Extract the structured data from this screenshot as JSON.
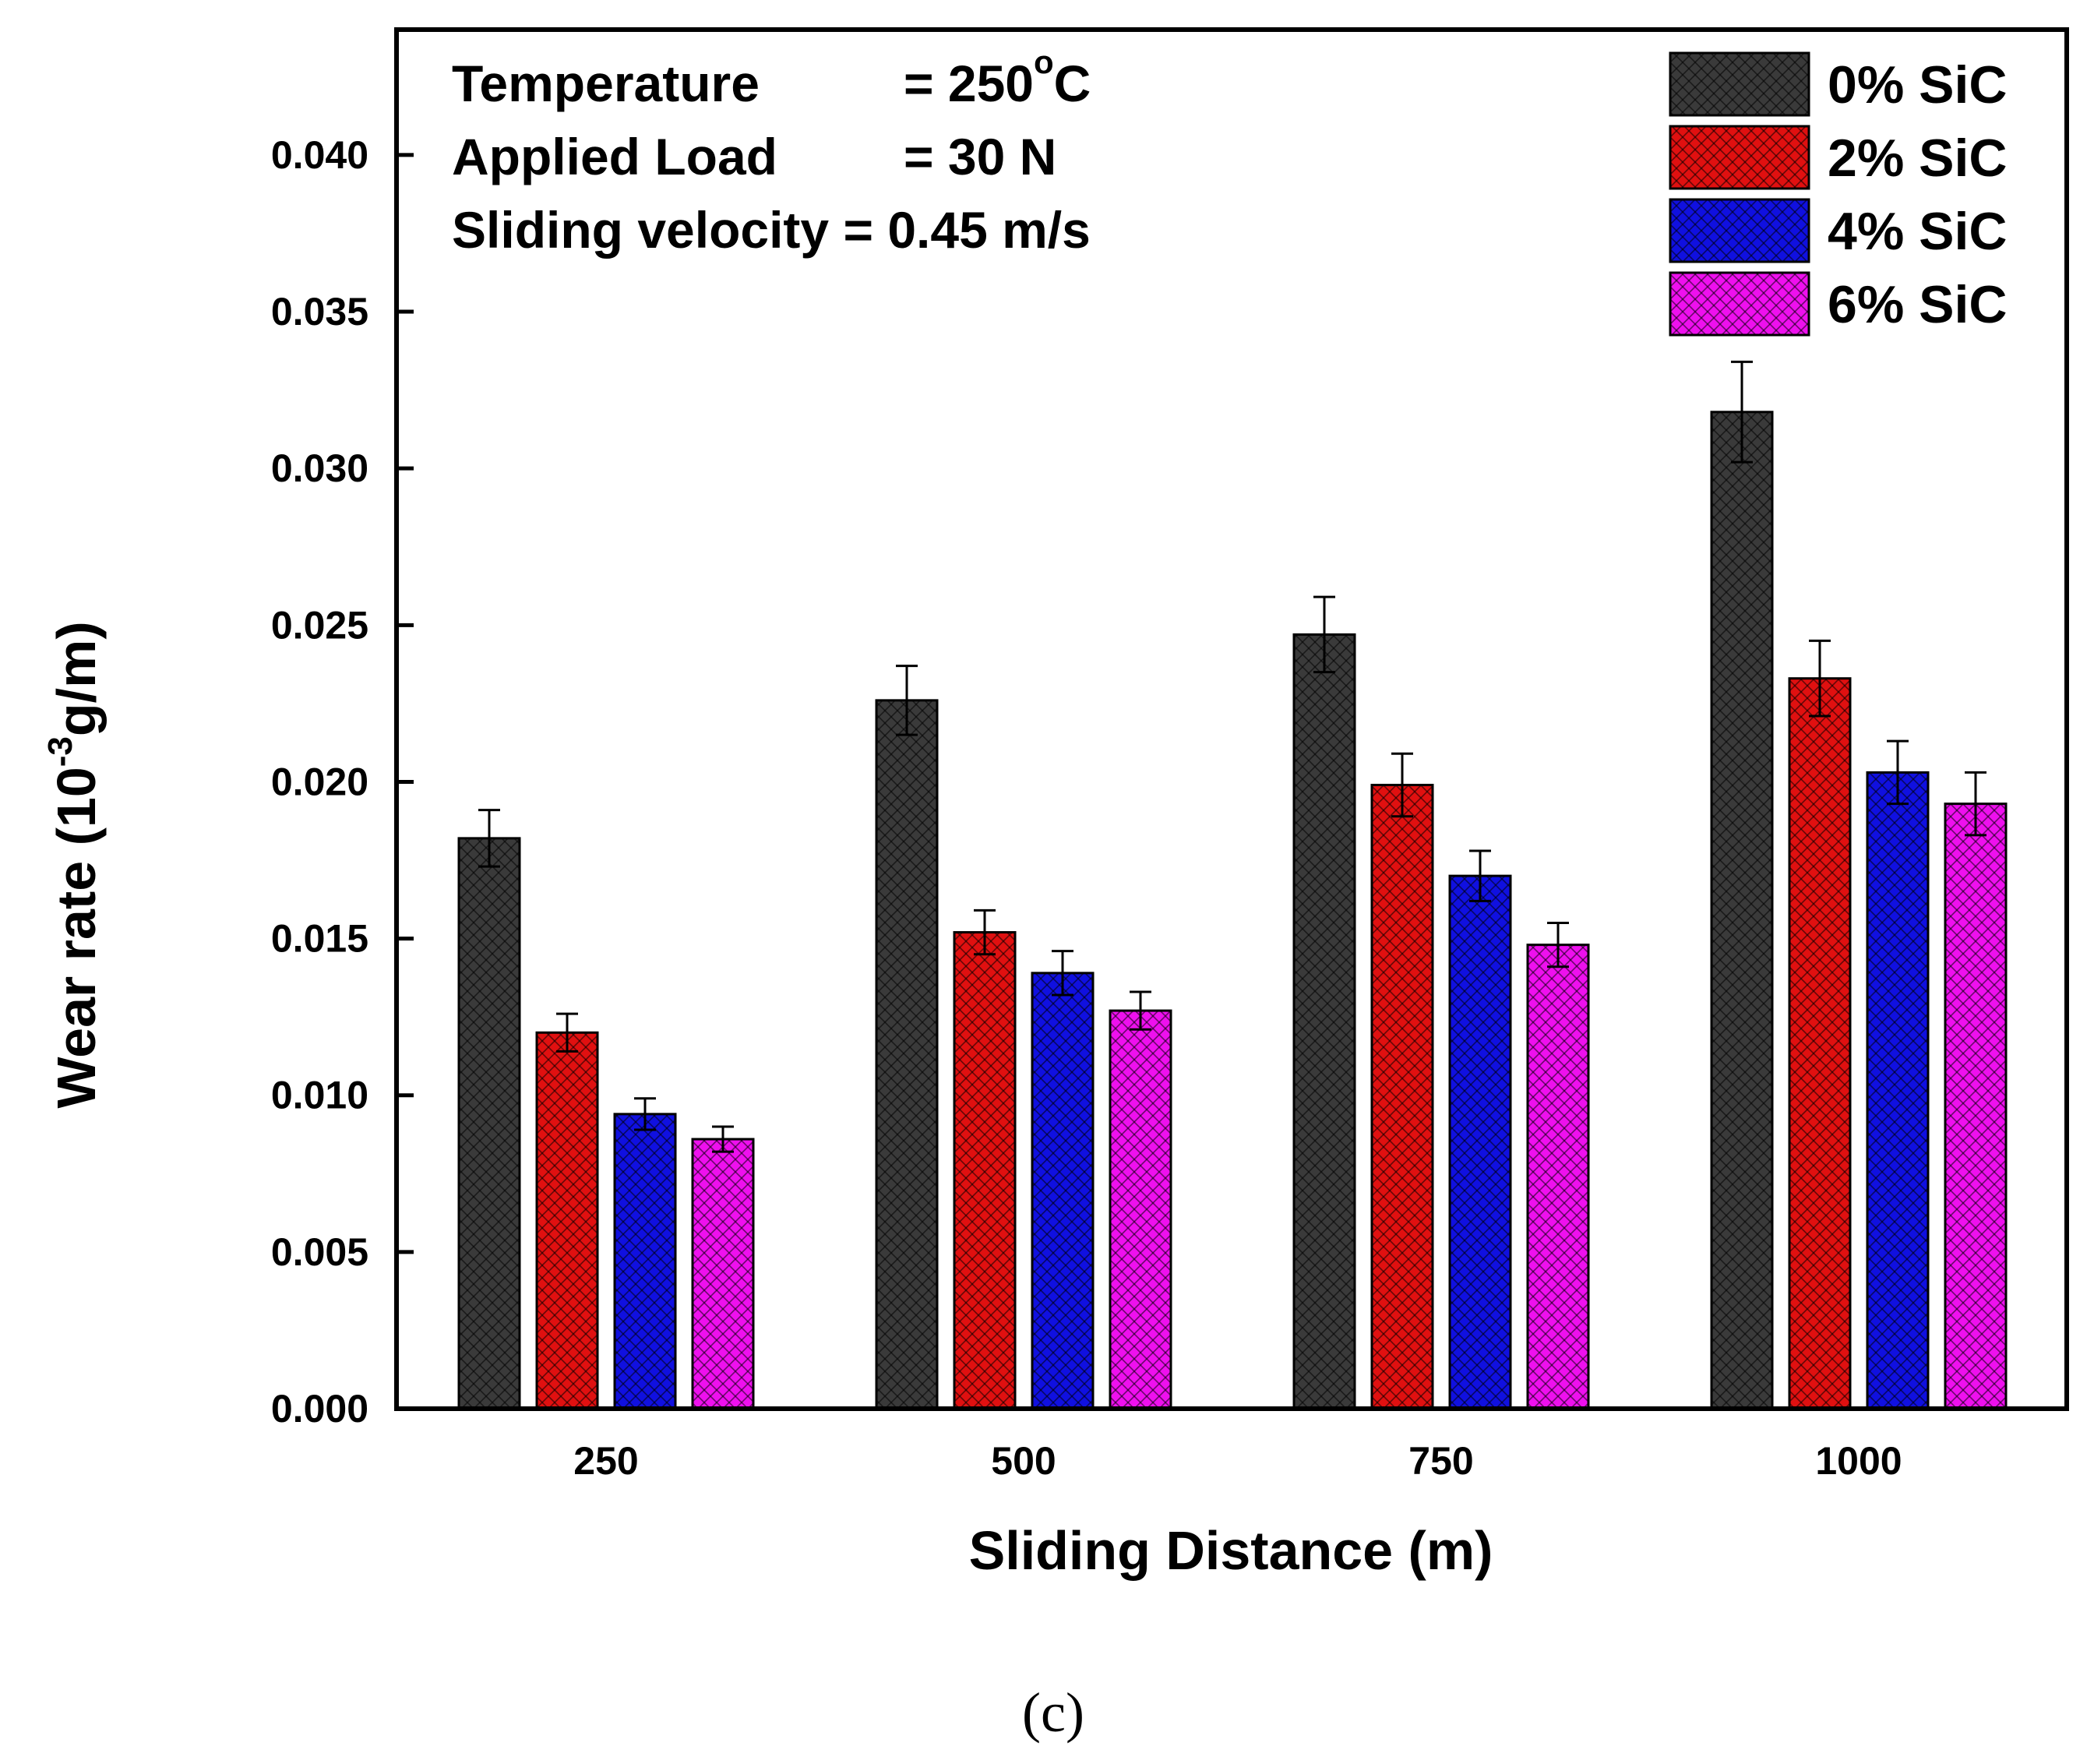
{
  "chart_data": {
    "type": "bar",
    "title": "",
    "xlabel": "Sliding Distance (m)",
    "ylabel": {
      "prefix": "Wear rate (10",
      "sup": "-3",
      "suffix": "g/m)"
    },
    "categories": [
      "250",
      "500",
      "750",
      "1000"
    ],
    "ylim": [
      0,
      0.044
    ],
    "yticks": [
      0.0,
      0.005,
      0.01,
      0.015,
      0.02,
      0.025,
      0.03,
      0.035,
      0.04
    ],
    "ytick_labels": [
      "0.000",
      "0.005",
      "0.010",
      "0.015",
      "0.020",
      "0.025",
      "0.030",
      "0.035",
      "0.040"
    ],
    "series": [
      {
        "name": "0% SiC",
        "color": "#3a3a3a",
        "values": [
          0.0182,
          0.0226,
          0.0247,
          0.0318
        ],
        "errors": [
          0.0009,
          0.0011,
          0.0012,
          0.0016
        ]
      },
      {
        "name": "2% SiC",
        "color": "#e01010",
        "values": [
          0.012,
          0.0152,
          0.0199,
          0.0233
        ],
        "errors": [
          0.0006,
          0.0007,
          0.001,
          0.0012
        ]
      },
      {
        "name": "4% SiC",
        "color": "#1010e0",
        "values": [
          0.0094,
          0.0139,
          0.017,
          0.0203
        ],
        "errors": [
          0.0005,
          0.0007,
          0.0008,
          0.001
        ]
      },
      {
        "name": "6% SiC",
        "color": "#ee10ee",
        "values": [
          0.0086,
          0.0127,
          0.0148,
          0.0193
        ],
        "errors": [
          0.0004,
          0.0006,
          0.0007,
          0.001
        ]
      }
    ],
    "legend_position": "top-right",
    "annotations": [
      {
        "label": "Temperature",
        "value": "= 250",
        "sup": "o",
        "unit": "C"
      },
      {
        "label": "Applied Load",
        "value": "= 30 N"
      },
      {
        "label": "Sliding velocity = 0.45 m/s"
      }
    ]
  },
  "caption": "(c)"
}
